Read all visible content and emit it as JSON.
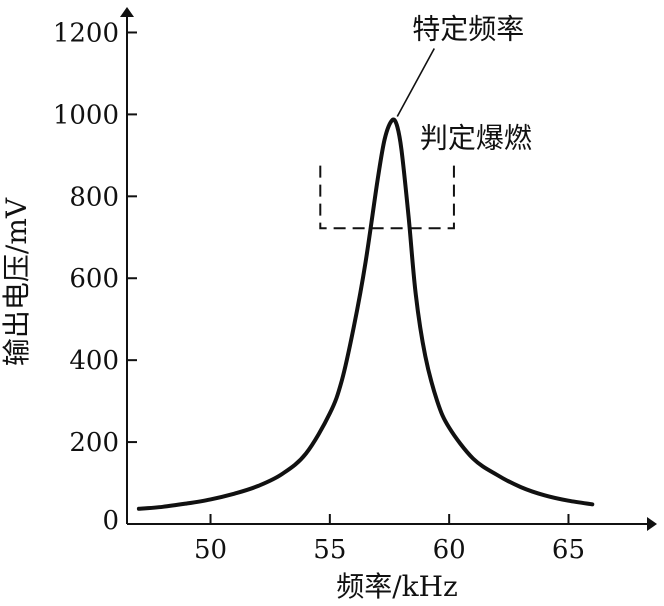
{
  "chart_data": {
    "type": "line",
    "title": "",
    "xlabel": "频率/kHz",
    "ylabel": "输出电压/mV",
    "xlim": [
      46.5,
      68.5
    ],
    "ylim": [
      0,
      1250
    ],
    "xticks": [
      50,
      55,
      60,
      65
    ],
    "yticks": [
      0,
      200,
      400,
      600,
      800,
      1000,
      1200
    ],
    "grid": false,
    "legend": "none",
    "series": [
      {
        "x": [
          47,
          48,
          49,
          50,
          51,
          52,
          53,
          54,
          55,
          55.5,
          56,
          56.5,
          57,
          57.3,
          57.6,
          57.8,
          58,
          58.3,
          58.6,
          59,
          59.5,
          60,
          61,
          62,
          63,
          64,
          65,
          66
        ],
        "y": [
          37,
          42,
          50,
          60,
          74,
          93,
          122,
          172,
          270,
          350,
          480,
          640,
          840,
          940,
          985,
          975,
          915,
          750,
          560,
          410,
          300,
          235,
          160,
          120,
          90,
          70,
          57,
          48
        ]
      }
    ],
    "annotations": [
      {
        "text": "特定频率",
        "x": 57.7,
        "y": 985
      },
      {
        "text": "判定爆燃",
        "x_range": [
          54.6,
          60.2
        ],
        "y_range": [
          722,
          875
        ]
      }
    ]
  }
}
